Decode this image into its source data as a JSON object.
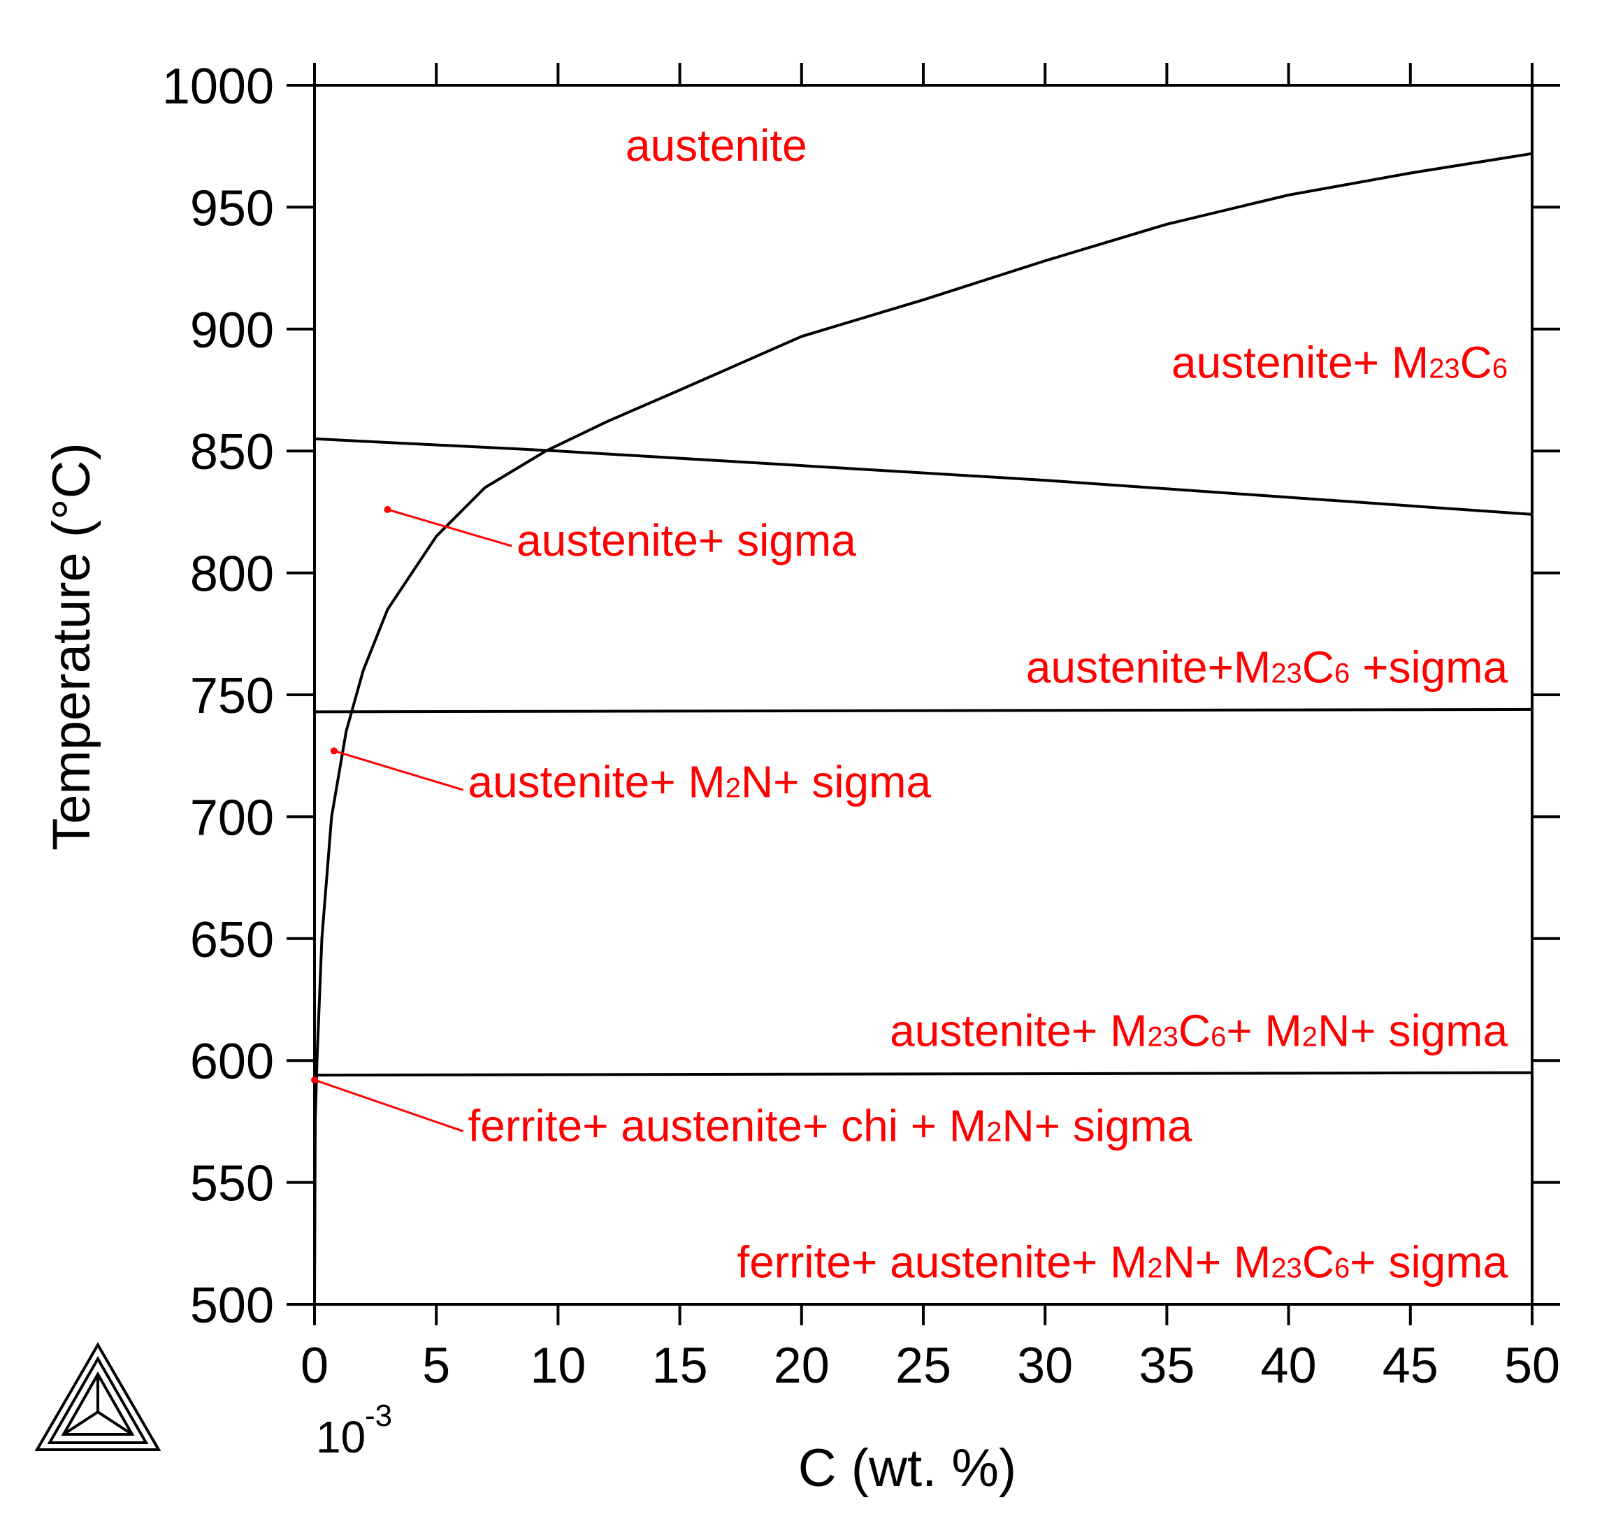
{
  "colors": {
    "axis": "#000000",
    "phase_boundary": "#000000",
    "labels": "#ff0000"
  },
  "logo_icon": "thermo-calc-triangle-logo",
  "chart_data": {
    "type": "line",
    "title": "",
    "xlabel": "C (wt. %)",
    "ylabel": "Temperature (°C)",
    "x_multiplier": {
      "base": "10",
      "exponent": "-3"
    },
    "xlim": [
      0,
      50
    ],
    "ylim": [
      500,
      1000
    ],
    "xticks": [
      0,
      5,
      10,
      15,
      20,
      25,
      30,
      35,
      40,
      45,
      50
    ],
    "xtick_labels": [
      "0",
      "5",
      "10",
      "15",
      "20",
      "25",
      "30",
      "35",
      "40",
      "45",
      "50"
    ],
    "yticks": [
      500,
      550,
      600,
      650,
      700,
      750,
      800,
      850,
      900,
      950,
      1000
    ],
    "ytick_labels": [
      "500",
      "550",
      "600",
      "650",
      "700",
      "750",
      "800",
      "850",
      "900",
      "950",
      "1000"
    ],
    "grid": false,
    "legend": "none",
    "series": [
      {
        "points": [
          [
            0,
            500
          ],
          [
            0.03,
            575
          ],
          [
            0.1,
            600
          ],
          [
            0.3,
            650
          ],
          [
            0.7,
            700
          ],
          [
            1.3,
            735
          ],
          [
            2,
            760
          ],
          [
            3,
            785
          ],
          [
            5,
            815
          ],
          [
            7,
            835
          ],
          [
            9.5,
            850
          ],
          [
            12,
            862
          ],
          [
            15,
            875
          ],
          [
            20,
            897
          ],
          [
            25,
            912
          ],
          [
            30,
            928
          ],
          [
            35,
            943
          ],
          [
            40,
            955
          ],
          [
            45,
            964
          ],
          [
            50,
            972
          ]
        ]
      },
      {
        "points": [
          [
            0,
            855
          ],
          [
            10,
            850
          ],
          [
            20,
            844
          ],
          [
            30,
            838
          ],
          [
            40,
            831
          ],
          [
            50,
            824
          ]
        ]
      },
      {
        "points": [
          [
            0,
            743
          ],
          [
            50,
            744
          ]
        ]
      },
      {
        "points": [
          [
            0,
            594
          ],
          [
            25,
            594.5
          ],
          [
            50,
            595
          ]
        ]
      }
    ],
    "annotations": [
      {
        "parts": [
          [
            "austenite",
            ""
          ]
        ],
        "x": 16.5,
        "y": 969,
        "anchor": "middle"
      },
      {
        "parts": [
          [
            "austenite+ M",
            ""
          ],
          [
            "23",
            "sub"
          ],
          [
            "C",
            ""
          ],
          [
            "6",
            "sub"
          ]
        ],
        "x": 49,
        "y": 880,
        "anchor": "end"
      },
      {
        "parts": [
          [
            "austenite+ sigma",
            ""
          ]
        ],
        "x": 8.3,
        "y": 807,
        "anchor": "start",
        "pointer": [
          3,
          826
        ],
        "leader_from": [
          8.1,
          811
        ]
      },
      {
        "parts": [
          [
            "austenite+M",
            ""
          ],
          [
            "23",
            "sub"
          ],
          [
            "C",
            ""
          ],
          [
            "6",
            "sub"
          ],
          [
            " +sigma",
            ""
          ]
        ],
        "x": 49,
        "y": 755,
        "anchor": "end"
      },
      {
        "parts": [
          [
            "austenite+ M",
            ""
          ],
          [
            "2",
            "sub"
          ],
          [
            "N+ sigma",
            ""
          ]
        ],
        "x": 6.3,
        "y": 708,
        "anchor": "start",
        "pointer": [
          0.8,
          727
        ],
        "leader_from": [
          6.1,
          711
        ]
      },
      {
        "parts": [
          [
            "austenite+ M",
            ""
          ],
          [
            "23",
            "sub"
          ],
          [
            "C",
            ""
          ],
          [
            "6",
            "sub"
          ],
          [
            "+ M",
            ""
          ],
          [
            "2",
            "sub"
          ],
          [
            "N+ sigma",
            ""
          ]
        ],
        "x": 49,
        "y": 606,
        "anchor": "end"
      },
      {
        "parts": [
          [
            "ferrite+ austenite+ chi + M",
            ""
          ],
          [
            "2",
            "sub"
          ],
          [
            "N+ sigma",
            ""
          ]
        ],
        "x": 6.3,
        "y": 567,
        "anchor": "start",
        "pointer": [
          0,
          592
        ],
        "leader_from": [
          6.1,
          571
        ]
      },
      {
        "parts": [
          [
            "ferrite+ austenite+ M",
            ""
          ],
          [
            "2",
            "sub"
          ],
          [
            "N+ M",
            ""
          ],
          [
            "23",
            "sub"
          ],
          [
            "C",
            ""
          ],
          [
            "6",
            "sub"
          ],
          [
            "+ sigma",
            ""
          ]
        ],
        "x": 49,
        "y": 511,
        "anchor": "end"
      }
    ]
  }
}
